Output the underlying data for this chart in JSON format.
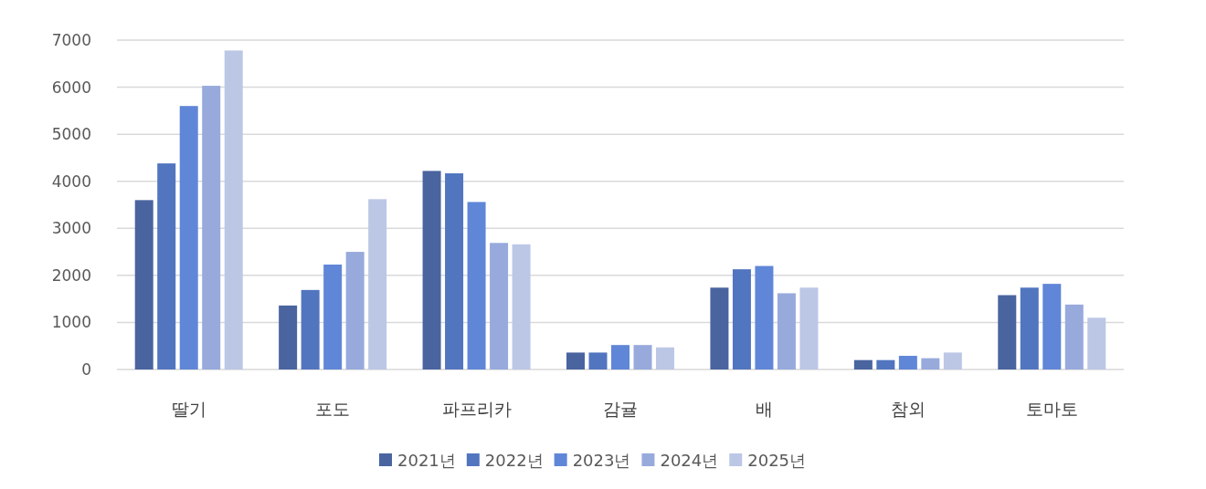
{
  "chart_data": {
    "type": "bar",
    "categories": [
      "딸기",
      "포도",
      "파프리카",
      "감귤",
      "배",
      "참외",
      "토마토"
    ],
    "series": [
      {
        "name": "2021년",
        "color": "#4a64a0",
        "values": [
          3600,
          1360,
          4220,
          360,
          1740,
          200,
          1580
        ]
      },
      {
        "name": "2022년",
        "color": "#5275bf",
        "values": [
          4380,
          1690,
          4170,
          360,
          2130,
          200,
          1740
        ]
      },
      {
        "name": "2023년",
        "color": "#6086d8",
        "values": [
          5600,
          2230,
          3560,
          520,
          2200,
          290,
          1820
        ]
      },
      {
        "name": "2024년",
        "color": "#98aadc",
        "values": [
          6030,
          2500,
          2690,
          520,
          1620,
          240,
          1380
        ]
      },
      {
        "name": "2025년",
        "color": "#bcc7e6",
        "values": [
          6780,
          3620,
          2660,
          470,
          1740,
          360,
          1100
        ]
      }
    ],
    "ylim": [
      0,
      7000
    ],
    "yticks": [
      0,
      1000,
      2000,
      3000,
      4000,
      5000,
      6000,
      7000
    ],
    "grid": "y",
    "legend": "bottom"
  }
}
